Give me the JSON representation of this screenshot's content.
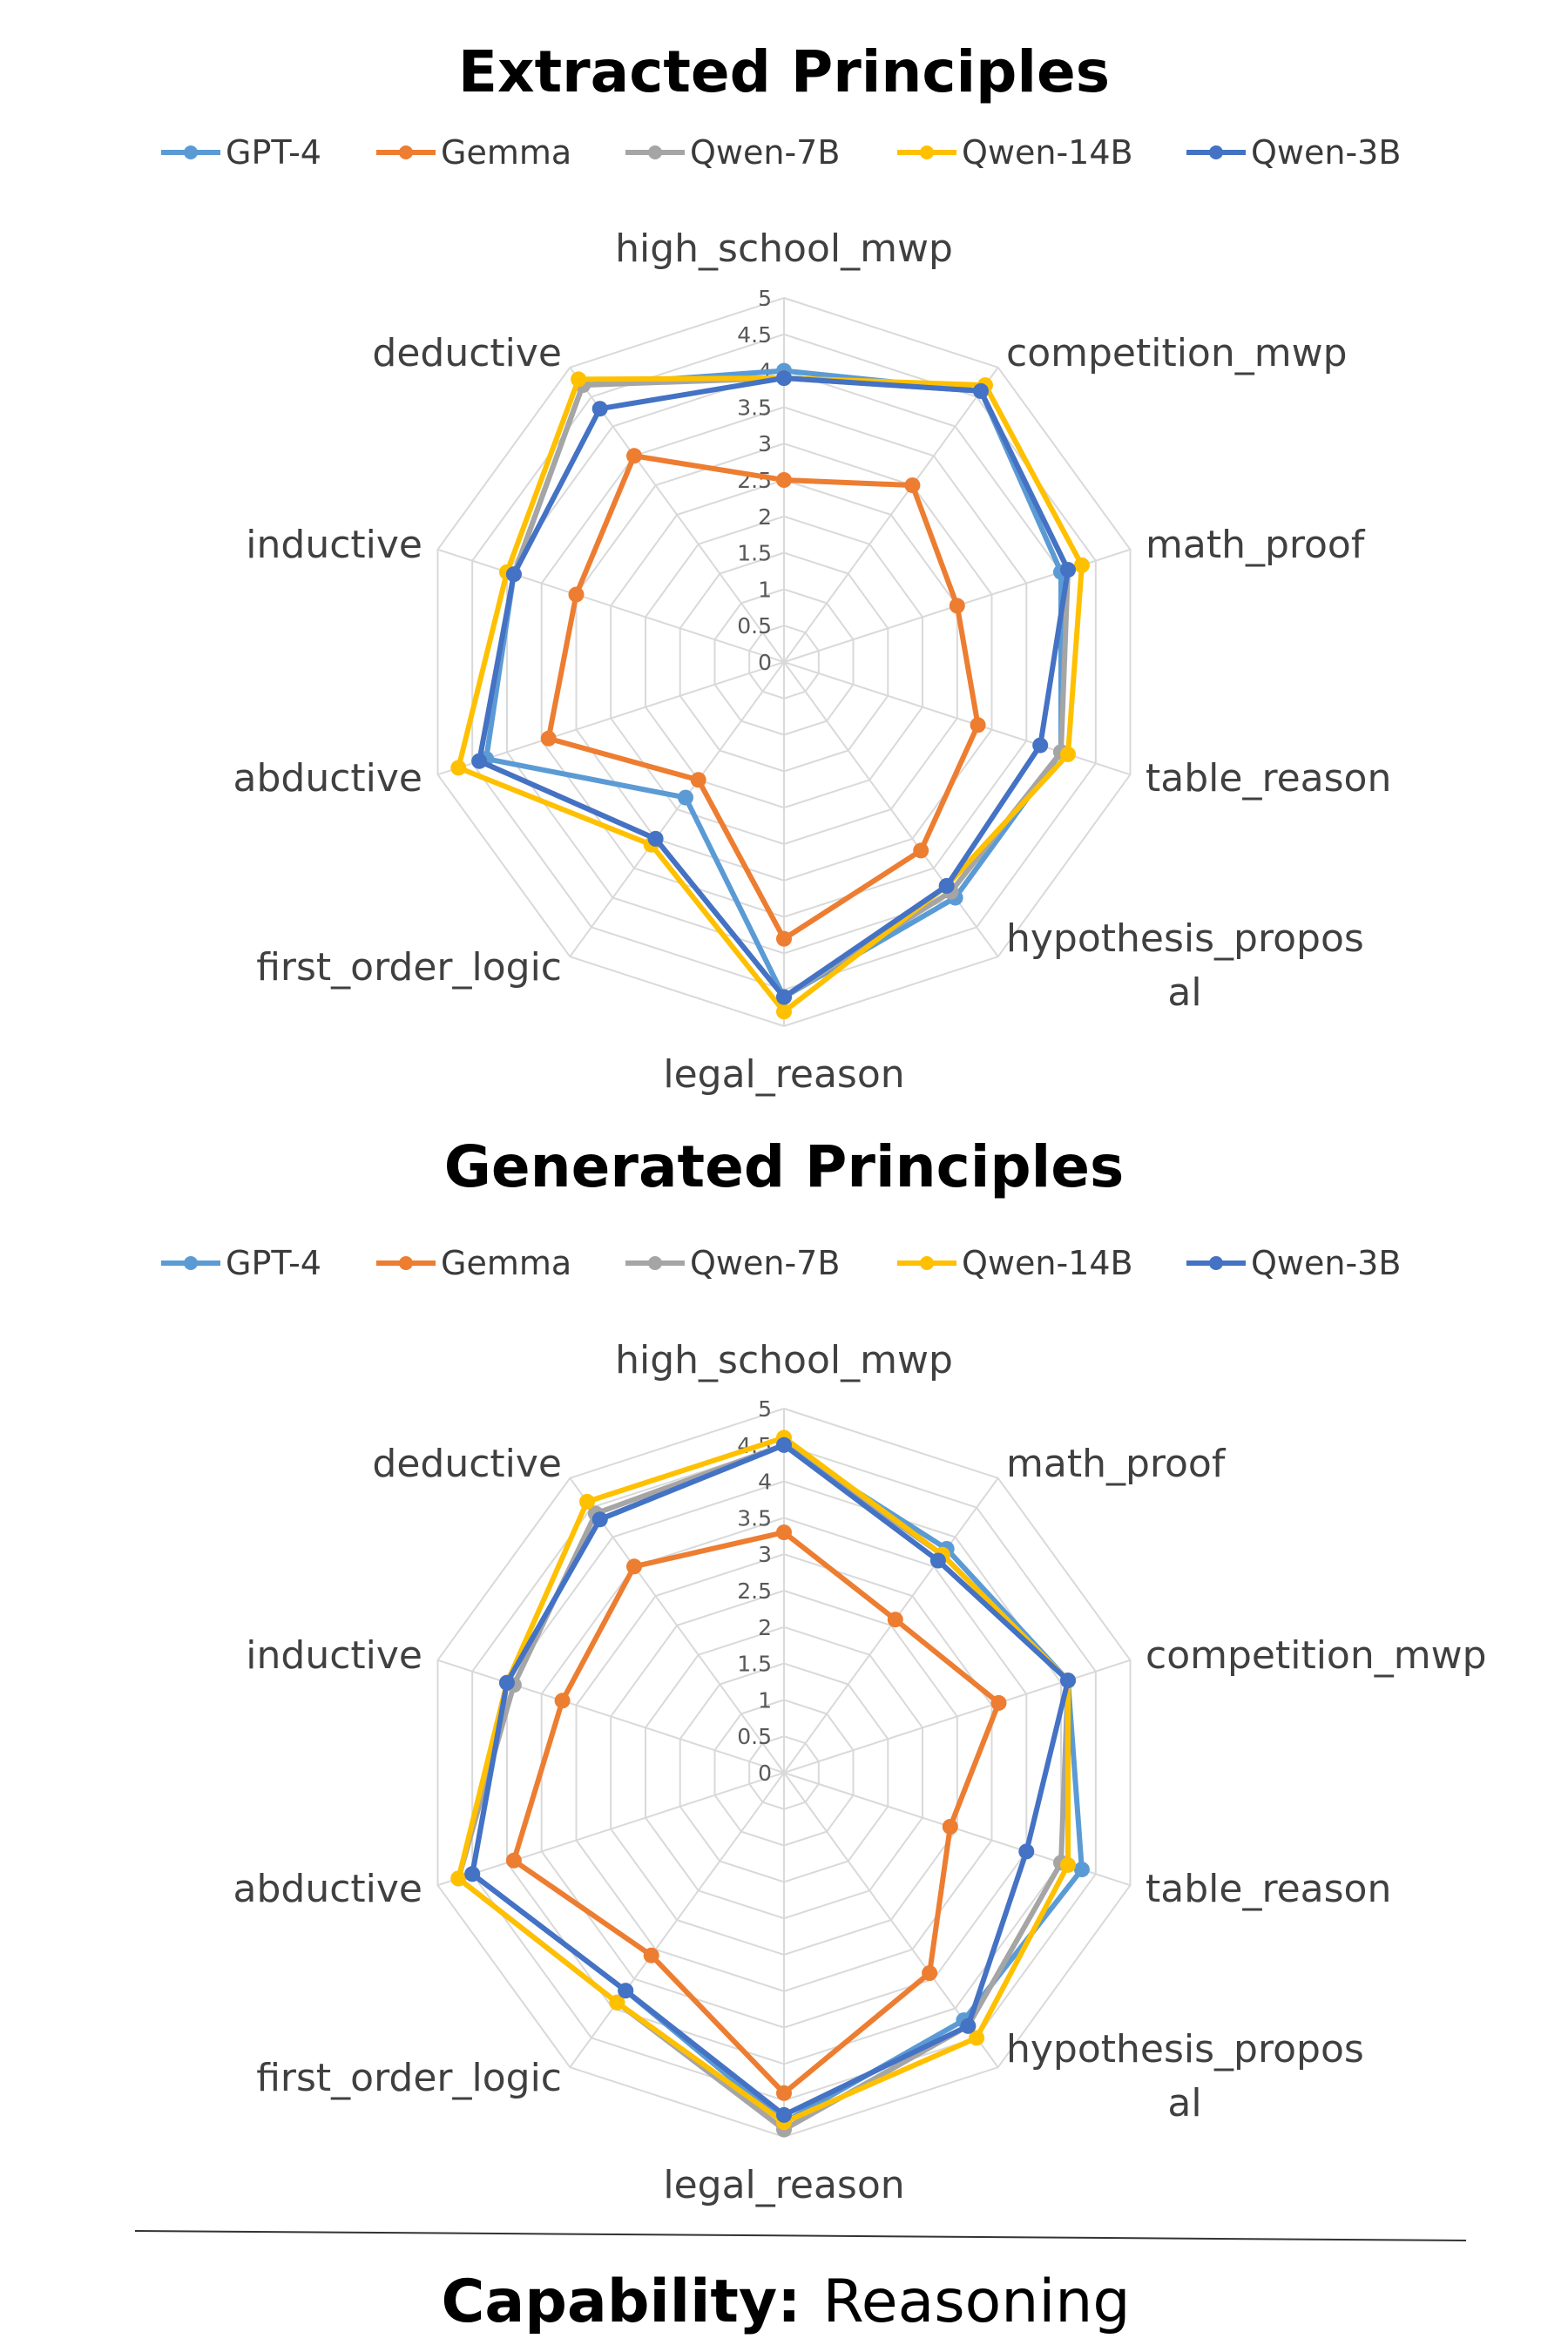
{
  "chart_data": [
    {
      "type": "radar",
      "title": "Extracted Principles",
      "categories": [
        "high_school_mwp",
        "competition_mwp",
        "math_proof",
        "table_reason",
        "hypothesis_proposal",
        "legal_reason",
        "first_order_logic",
        "abductive",
        "inductive",
        "deductive"
      ],
      "axis_labels": [
        [
          "high_school_mwp"
        ],
        [
          "competition_mwp"
        ],
        [
          "math_proof"
        ],
        [
          "table_reason"
        ],
        [
          "hypothesis_propos",
          "al"
        ],
        [
          "legal_reason"
        ],
        [
          "first_order_logic"
        ],
        [
          "abductive"
        ],
        [
          "inductive"
        ],
        [
          "deductive"
        ]
      ],
      "ticks": [
        "0",
        "0.5",
        "1",
        "1.5",
        "2",
        "2.5",
        "3",
        "3.5",
        "4",
        "4.5",
        "5"
      ],
      "rmin": 0,
      "rmax": 5,
      "legend_position": "top",
      "series": [
        {
          "name": "GPT-4",
          "color": "#5B9BD5",
          "values": [
            4.0,
            4.6,
            4.0,
            4.0,
            4.0,
            4.6,
            2.3,
            4.3,
            3.9,
            4.7
          ]
        },
        {
          "name": "Gemma",
          "color": "#ED7D31",
          "values": [
            2.5,
            3.0,
            2.5,
            2.8,
            3.2,
            3.8,
            2.0,
            3.4,
            3.0,
            3.5
          ]
        },
        {
          "name": "Qwen-7B",
          "color": "#A5A5A5",
          "values": [
            3.9,
            4.6,
            4.1,
            4.0,
            3.9,
            4.6,
            3.0,
            4.4,
            3.9,
            4.7
          ]
        },
        {
          "name": "Qwen-14B",
          "color": "#FFC000",
          "values": [
            3.9,
            4.7,
            4.3,
            4.1,
            3.8,
            4.8,
            3.1,
            4.7,
            4.0,
            4.8
          ]
        },
        {
          "name": "Qwen-3B",
          "color": "#4472C4",
          "values": [
            3.9,
            4.6,
            4.1,
            3.7,
            3.8,
            4.6,
            3.0,
            4.4,
            3.9,
            4.3
          ]
        }
      ]
    },
    {
      "type": "radar",
      "title": "Generated Principles",
      "categories": [
        "high_school_mwp",
        "math_proof",
        "competition_mwp",
        "table_reason",
        "hypothesis_proposal",
        "legal_reason",
        "first_order_logic",
        "abductive",
        "inductive",
        "deductive"
      ],
      "axis_labels": [
        [
          "high_school_mwp"
        ],
        [
          "math_proof"
        ],
        [
          "competition_mwp"
        ],
        [
          "table_reason"
        ],
        [
          "hypothesis_propos",
          "al"
        ],
        [
          "legal_reason"
        ],
        [
          "first_order_logic"
        ],
        [
          "abductive"
        ],
        [
          "inductive"
        ],
        [
          "deductive"
        ]
      ],
      "ticks": [
        "0",
        "0.5",
        "1",
        "1.5",
        "2",
        "2.5",
        "3",
        "3.5",
        "4",
        "4.5",
        "5"
      ],
      "rmin": 0,
      "rmax": 5,
      "legend_position": "top",
      "series": [
        {
          "name": "GPT-4",
          "color": "#5B9BD5",
          "values": [
            4.5,
            3.8,
            4.1,
            4.3,
            4.2,
            4.8,
            3.7,
            4.5,
            4.0,
            4.3
          ]
        },
        {
          "name": "Gemma",
          "color": "#ED7D31",
          "values": [
            3.3,
            2.6,
            3.1,
            2.4,
            3.4,
            4.4,
            3.1,
            3.9,
            3.2,
            3.5
          ]
        },
        {
          "name": "Qwen-7B",
          "color": "#A5A5A5",
          "values": [
            4.5,
            3.7,
            4.1,
            4.0,
            4.3,
            4.9,
            3.9,
            4.7,
            3.9,
            4.4
          ]
        },
        {
          "name": "Qwen-14B",
          "color": "#FFC000",
          "values": [
            4.6,
            3.7,
            4.1,
            4.1,
            4.5,
            4.8,
            3.9,
            4.7,
            4.0,
            4.6
          ]
        },
        {
          "name": "Qwen-3B",
          "color": "#4472C4",
          "values": [
            4.5,
            3.6,
            4.1,
            3.5,
            4.3,
            4.7,
            3.7,
            4.5,
            4.0,
            4.3
          ]
        }
      ]
    }
  ],
  "footer": {
    "label": "Capability:",
    "value": "Reasoning"
  }
}
